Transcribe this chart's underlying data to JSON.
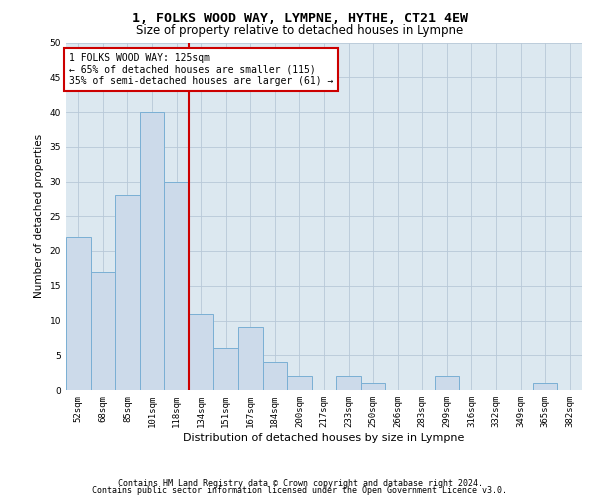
{
  "title1": "1, FOLKS WOOD WAY, LYMPNE, HYTHE, CT21 4EW",
  "title2": "Size of property relative to detached houses in Lympne",
  "xlabel": "Distribution of detached houses by size in Lympne",
  "ylabel": "Number of detached properties",
  "categories": [
    "52sqm",
    "68sqm",
    "85sqm",
    "101sqm",
    "118sqm",
    "134sqm",
    "151sqm",
    "167sqm",
    "184sqm",
    "200sqm",
    "217sqm",
    "233sqm",
    "250sqm",
    "266sqm",
    "283sqm",
    "299sqm",
    "316sqm",
    "332sqm",
    "349sqm",
    "365sqm",
    "382sqm"
  ],
  "values": [
    22,
    17,
    28,
    40,
    30,
    11,
    6,
    9,
    4,
    2,
    0,
    2,
    1,
    0,
    0,
    2,
    0,
    0,
    0,
    1,
    0
  ],
  "bar_color": "#ccdaea",
  "bar_edge_color": "#7aafd4",
  "property_line_x": 4.5,
  "annotation_line1": "1 FOLKS WOOD WAY: 125sqm",
  "annotation_line2": "← 65% of detached houses are smaller (115)",
  "annotation_line3": "35% of semi-detached houses are larger (61) →",
  "annotation_box_color": "#ffffff",
  "annotation_box_edge_color": "#cc0000",
  "property_line_color": "#cc0000",
  "ylim": [
    0,
    50
  ],
  "yticks": [
    0,
    5,
    10,
    15,
    20,
    25,
    30,
    35,
    40,
    45,
    50
  ],
  "grid_color": "#b8c8d8",
  "background_color": "#dce8f0",
  "footer1": "Contains HM Land Registry data © Crown copyright and database right 2024.",
  "footer2": "Contains public sector information licensed under the Open Government Licence v3.0.",
  "title1_fontsize": 9.5,
  "title2_fontsize": 8.5,
  "xlabel_fontsize": 8,
  "ylabel_fontsize": 7.5,
  "annot_fontsize": 7,
  "tick_fontsize": 6.5,
  "footer_fontsize": 6
}
